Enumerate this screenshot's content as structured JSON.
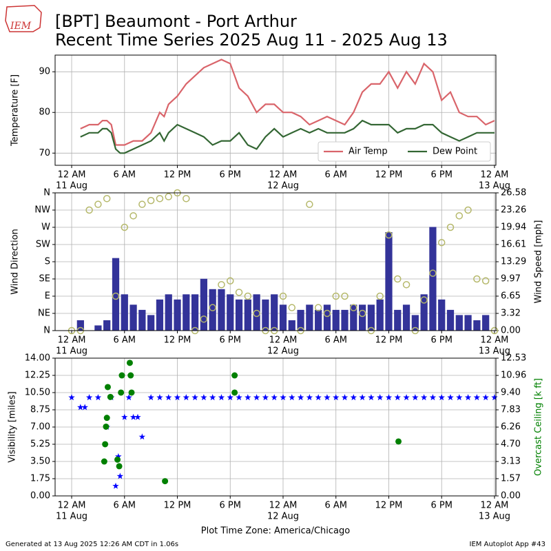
{
  "header": {
    "logo": "IEM",
    "line1": "[BPT] Beaumont - Port Arthur",
    "line2": "Recent Time Series 2025 Aug 11 - 2025 Aug 13"
  },
  "footer": {
    "left": "Generated at 13 Aug 2025 12:26 AM CDT in 1.06s",
    "right": "IEM Autoplot App #43"
  },
  "chart_data": [
    {
      "type": "line",
      "ylabel": "Temperature [F]",
      "grid": true,
      "legend": "lower right",
      "xlim": [
        -1.88,
        48.16
      ],
      "xticks": [
        {
          "value": 0,
          "label": "12 AM",
          "sublabel": "11 Aug"
        },
        {
          "value": 6,
          "label": "6 AM"
        },
        {
          "value": 12,
          "label": "12 PM"
        },
        {
          "value": 18,
          "label": "6 PM"
        },
        {
          "value": 24,
          "label": "12 AM",
          "sublabel": "12 Aug"
        },
        {
          "value": 30,
          "label": "6 AM"
        },
        {
          "value": 36,
          "label": "12 PM"
        },
        {
          "value": 42,
          "label": "6 PM"
        },
        {
          "value": 48,
          "label": "12 AM",
          "sublabel": "13 Aug"
        }
      ],
      "ylim": [
        67,
        94.1
      ],
      "yticks": [
        70,
        80,
        90
      ],
      "x": [
        1,
        2,
        3,
        3.5,
        4,
        4.5,
        5,
        5.5,
        6,
        7,
        8,
        9,
        10,
        10.5,
        11,
        12,
        13,
        14,
        15,
        16,
        17,
        18,
        19,
        20,
        21,
        22,
        23,
        24,
        25,
        26,
        27,
        28,
        29,
        30,
        31,
        32,
        33,
        34,
        35,
        36,
        37,
        38,
        39,
        40,
        41,
        42,
        43,
        44,
        45,
        46,
        47,
        48
      ],
      "series": [
        {
          "name": "Air Temp",
          "color": "#d9646a",
          "mark": "line",
          "values": [
            76,
            77,
            77,
            78,
            78,
            77,
            72,
            72,
            72,
            73,
            73,
            75,
            80,
            79,
            82,
            84,
            87,
            89,
            91,
            92,
            93,
            92,
            86,
            84,
            80,
            82,
            82,
            80,
            80,
            79,
            77,
            78,
            79,
            78,
            77,
            80,
            85,
            87,
            87,
            90,
            86,
            90,
            87,
            92,
            90,
            83,
            85,
            80,
            79,
            79,
            77,
            78
          ]
        },
        {
          "name": "Dew Point",
          "color": "#336633",
          "mark": "line",
          "values": [
            74,
            75,
            75,
            76,
            76,
            75,
            71,
            70,
            70,
            71,
            72,
            73,
            75,
            73,
            75,
            77,
            76,
            75,
            74,
            72,
            73,
            73,
            75,
            72,
            71,
            74,
            76,
            74,
            75,
            76,
            75,
            76,
            75,
            75,
            75,
            76,
            78,
            77,
            77,
            77,
            75,
            76,
            76,
            77,
            77,
            75,
            74,
            73,
            74,
            75,
            75,
            75
          ]
        }
      ]
    },
    {
      "type": "bar",
      "ylabel": "Wind Direction",
      "y2label": "Wind Speed [mph]",
      "grid": true,
      "xlim": [
        -1.88,
        48.16
      ],
      "xticks": [
        {
          "value": 0,
          "label": "12 AM",
          "sublabel": "11 Aug"
        },
        {
          "value": 6,
          "label": "6 AM"
        },
        {
          "value": 12,
          "label": "12 PM"
        },
        {
          "value": 18,
          "label": "6 PM"
        },
        {
          "value": 24,
          "label": "12 AM",
          "sublabel": "12 Aug"
        },
        {
          "value": 30,
          "label": "6 AM"
        },
        {
          "value": 36,
          "label": "12 PM"
        },
        {
          "value": 42,
          "label": "6 PM"
        },
        {
          "value": 48,
          "label": "12 AM",
          "sublabel": "13 Aug"
        }
      ],
      "ylim": [
        0,
        360
      ],
      "yticks": [
        {
          "value": 0,
          "label": "N"
        },
        {
          "value": 45,
          "label": "NE"
        },
        {
          "value": 90,
          "label": "E"
        },
        {
          "value": 135,
          "label": "SE"
        },
        {
          "value": 180,
          "label": "S"
        },
        {
          "value": 225,
          "label": "SW"
        },
        {
          "value": 270,
          "label": "W"
        },
        {
          "value": 315,
          "label": "NW"
        },
        {
          "value": 360,
          "label": "N"
        }
      ],
      "y2lim": [
        0,
        26.58
      ],
      "y2ticks": [
        {
          "value": 0,
          "label": "0.00"
        },
        3.32,
        6.65,
        9.97,
        13.29,
        16.61,
        19.94,
        23.26,
        26.58
      ],
      "x": [
        0,
        1,
        2,
        3,
        4,
        5,
        6,
        7,
        8,
        9,
        10,
        11,
        12,
        13,
        14,
        15,
        16,
        17,
        18,
        19,
        20,
        21,
        22,
        23,
        24,
        25,
        26,
        27,
        28,
        29,
        30,
        31,
        32,
        33,
        34,
        35,
        36,
        37,
        38,
        39,
        40,
        41,
        42,
        43,
        44,
        45,
        46,
        47,
        48
      ],
      "series": [
        {
          "color": "#333399",
          "mark": "bar",
          "axis": "y2",
          "values": [
            0,
            2,
            0,
            1,
            2,
            14,
            7,
            5,
            4,
            3,
            6,
            7,
            6,
            7,
            7,
            10,
            8,
            8,
            7,
            6,
            6,
            7,
            6,
            7,
            5,
            2,
            4,
            5,
            4,
            5,
            4,
            4,
            5,
            5,
            5,
            6,
            19,
            4,
            5,
            3,
            7,
            20,
            6,
            4,
            3,
            3,
            2,
            3,
            0
          ]
        },
        {
          "color": "#b5b86a",
          "mark": "circle-open",
          "values": [
            0,
            0,
            315,
            330,
            345,
            90,
            270,
            300,
            330,
            340,
            345,
            350,
            360,
            345,
            0,
            30,
            60,
            120,
            130,
            100,
            90,
            45,
            0,
            0,
            90,
            60,
            0,
            330,
            60,
            45,
            90,
            90,
            60,
            45,
            0,
            90,
            250,
            135,
            120,
            0,
            80,
            150,
            230,
            270,
            300,
            315,
            135,
            130,
            0
          ]
        }
      ]
    },
    {
      "type": "scatter",
      "ylabel": "Visibility [miles]",
      "y2label": "Overcast Ceiling [k ft]",
      "y2label_color": "#008000",
      "grid": true,
      "xlabel": "Plot Time Zone: America/Chicago",
      "xlim": [
        -1.88,
        48.16
      ],
      "xticks": [
        {
          "value": 0,
          "label": "12 AM",
          "sublabel": "11 Aug"
        },
        {
          "value": 6,
          "label": "6 AM"
        },
        {
          "value": 12,
          "label": "12 PM"
        },
        {
          "value": 18,
          "label": "6 PM"
        },
        {
          "value": 24,
          "label": "12 AM",
          "sublabel": "12 Aug"
        },
        {
          "value": 30,
          "label": "6 AM"
        },
        {
          "value": 36,
          "label": "12 PM"
        },
        {
          "value": 42,
          "label": "6 PM"
        },
        {
          "value": 48,
          "label": "12 AM",
          "sublabel": "13 Aug"
        }
      ],
      "ylim": [
        0,
        14
      ],
      "yticks": [
        {
          "value": 0,
          "label": "0.00"
        },
        1.75,
        {
          "value": 3.5,
          "label": "3.50"
        },
        5.25,
        {
          "value": 7,
          "label": "7.00"
        },
        8.75,
        {
          "value": 10.5,
          "label": "10.50"
        },
        12.25,
        {
          "value": 14,
          "label": "14.00"
        }
      ],
      "y2lim": [
        0,
        12.53
      ],
      "y2ticks": [
        {
          "value": 0,
          "label": "0.00"
        },
        1.57,
        3.13,
        {
          "value": 4.7,
          "label": "4.70"
        },
        6.26,
        7.83,
        {
          "value": 9.4,
          "label": "9.40"
        },
        10.96,
        12.53
      ],
      "series": [
        {
          "color": "#0000ff",
          "mark": "star",
          "x": [
            0,
            1,
            1.5,
            2,
            3,
            4,
            4.5,
            5,
            5.3,
            5.5,
            6,
            6.5,
            7,
            7.5,
            8,
            9,
            10,
            11,
            12,
            13,
            14,
            15,
            16,
            17,
            18,
            19,
            20,
            21,
            22,
            23,
            24,
            25,
            26,
            27,
            28,
            29,
            30,
            31,
            32,
            33,
            34,
            35,
            36,
            37,
            38,
            39,
            40,
            41,
            42,
            43,
            44,
            45,
            46,
            47,
            48
          ],
          "values": [
            10,
            9,
            9,
            10,
            10,
            7,
            10,
            1,
            4,
            2,
            8,
            10,
            8,
            8,
            6,
            10,
            10,
            10,
            10,
            10,
            10,
            10,
            10,
            10,
            10,
            10,
            10,
            10,
            10,
            10,
            10,
            10,
            10,
            10,
            10,
            10,
            10,
            10,
            10,
            10,
            10,
            10,
            10,
            10,
            10,
            10,
            10,
            10,
            10,
            10,
            10,
            10,
            10,
            10,
            10
          ]
        },
        {
          "color": "#008000",
          "mark": "circle",
          "axis": "y2",
          "x": [
            3.7,
            3.8,
            3.9,
            4.0,
            4.1,
            4.4,
            5.2,
            5.4,
            5.6,
            5.7,
            6.6,
            6.7,
            6.8,
            10.6,
            18.5,
            18.5,
            37.1
          ],
          "values": [
            3.13,
            4.7,
            6.3,
            7.1,
            9.9,
            9.0,
            3.3,
            2.7,
            9.4,
            10.96,
            12.1,
            10.96,
            9.4,
            1.34,
            10.96,
            9.4,
            4.95
          ]
        }
      ]
    }
  ]
}
